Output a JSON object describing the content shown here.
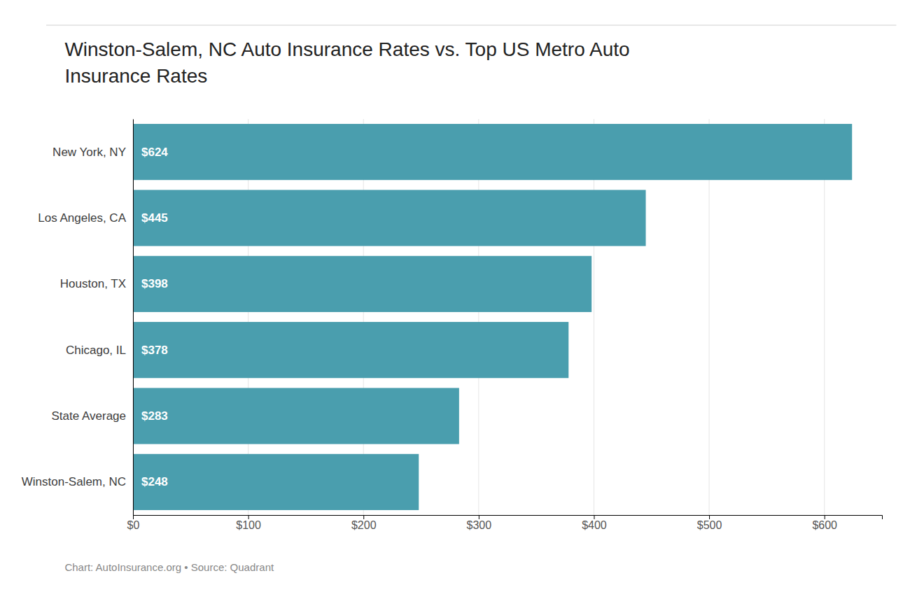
{
  "chart_data": {
    "type": "bar",
    "orientation": "horizontal",
    "title": "Winston-Salem, NC Auto Insurance Rates vs. Top US Metro Auto\nInsurance Rates",
    "categories": [
      "New York, NY",
      "Los Angeles, CA",
      "Houston, TX",
      "Chicago, IL",
      "State Average",
      "Winston-Salem, NC"
    ],
    "values": [
      624,
      445,
      398,
      378,
      283,
      248
    ],
    "value_labels": [
      "$624",
      "$445",
      "$398",
      "$378",
      "$283",
      "$248"
    ],
    "data_labels": true,
    "color": "#4a9eae",
    "xlim": [
      0,
      650
    ],
    "xticks": [
      {
        "value": 0,
        "label": "$0"
      },
      {
        "value": 100,
        "label": "$100"
      },
      {
        "value": 200,
        "label": "$200"
      },
      {
        "value": 300,
        "label": "$300"
      },
      {
        "value": 400,
        "label": "$400"
      },
      {
        "value": 500,
        "label": "$500"
      },
      {
        "value": 600,
        "label": "$600"
      }
    ],
    "grid": true,
    "annotations": [
      "Chart: AutoInsurance.org • Source: Quadrant"
    ]
  }
}
